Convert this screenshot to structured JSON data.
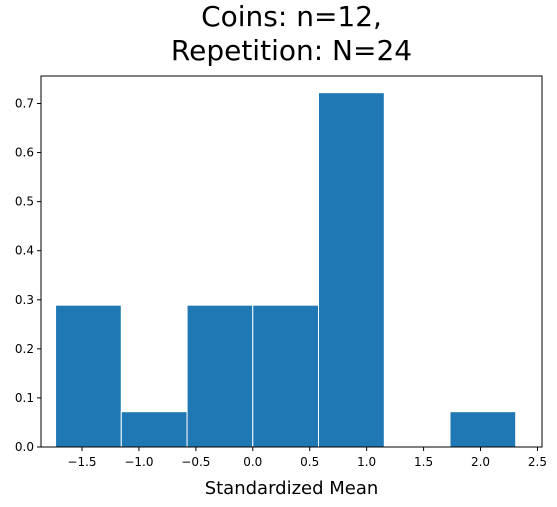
{
  "chart_data": {
    "type": "bar",
    "title_lines": [
      "Coins: n=12,",
      "Repetition: N=24"
    ],
    "xlabel": "Standardized Mean",
    "ylabel": "",
    "bar_color": "#1f77b4",
    "edge_color": "#ffffff",
    "xlim": [
      -1.86,
      2.54
    ],
    "ylim": [
      0,
      0.756
    ],
    "xticks": [
      -1.5,
      -1.0,
      -0.5,
      0.0,
      0.5,
      1.0,
      1.5,
      2.0,
      2.5
    ],
    "xtick_labels": [
      "−1.5",
      "−1.0",
      "−0.5",
      "0.0",
      "0.5",
      "1.0",
      "1.5",
      "2.0",
      "2.5"
    ],
    "yticks": [
      0.0,
      0.1,
      0.2,
      0.3,
      0.4,
      0.5,
      0.6,
      0.7
    ],
    "ytick_labels": [
      "0.0",
      "0.1",
      "0.2",
      "0.3",
      "0.4",
      "0.5",
      "0.6",
      "0.7"
    ],
    "bins": [
      {
        "x0": -1.732,
        "x1": -1.155,
        "value": 0.289
      },
      {
        "x0": -1.155,
        "x1": -0.577,
        "value": 0.072
      },
      {
        "x0": -0.577,
        "x1": 0.0,
        "value": 0.289
      },
      {
        "x0": 0.0,
        "x1": 0.577,
        "value": 0.289
      },
      {
        "x0": 0.577,
        "x1": 1.155,
        "value": 0.722
      },
      {
        "x0": 1.155,
        "x1": 1.732,
        "value": 0.0
      },
      {
        "x0": 1.732,
        "x1": 2.309,
        "value": 0.072
      }
    ]
  }
}
